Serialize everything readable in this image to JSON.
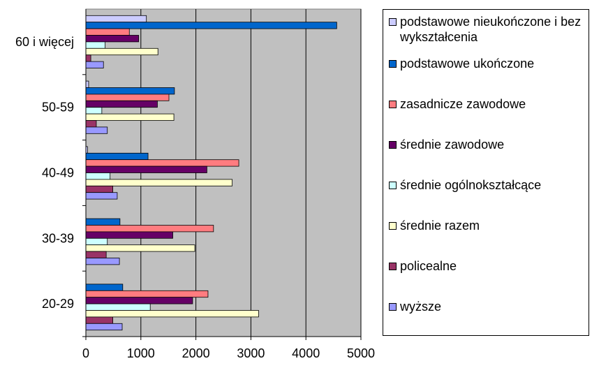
{
  "chart_data": {
    "type": "bar",
    "orientation": "horizontal",
    "categories": [
      "60 i więcej",
      "50-59",
      "40-49",
      "30-39",
      "20-29"
    ],
    "series": [
      {
        "name": "podstawowe nieukończone i bez wykształcenia",
        "color": "#ccccff",
        "values": [
          1100,
          50,
          30,
          null,
          null
        ]
      },
      {
        "name": "podstawowe ukończone",
        "color": "#0066cc",
        "values": [
          4560,
          1610,
          1130,
          620,
          670
        ]
      },
      {
        "name": "zasadnicze zawodowe",
        "color": "#ff7c80",
        "values": [
          790,
          1510,
          2780,
          2320,
          2220
        ]
      },
      {
        "name": "średnie zawodowe",
        "color": "#660066",
        "values": [
          960,
          1300,
          2200,
          1580,
          1940
        ]
      },
      {
        "name": "średnie ogólnokształcące",
        "color": "#ccffff",
        "values": [
          350,
          290,
          440,
          390,
          1170
        ]
      },
      {
        "name": "średnie razem",
        "color": "#ffffcc",
        "values": [
          1310,
          1600,
          2660,
          1980,
          3140
        ]
      },
      {
        "name": "policealne",
        "color": "#993366",
        "values": [
          90,
          190,
          490,
          370,
          490
        ]
      },
      {
        "name": "wyższe",
        "color": "#9999ff",
        "values": [
          320,
          390,
          570,
          610,
          660
        ]
      }
    ],
    "xlim": [
      0,
      5000
    ],
    "x_ticks": [
      "0",
      "1000",
      "2000",
      "3000",
      "4000",
      "5000"
    ],
    "x_tick_values": [
      0,
      1000,
      2000,
      3000,
      4000,
      5000
    ],
    "grid": "vertical",
    "plot_background": "#c0c0c0",
    "legend_placement": "right"
  }
}
